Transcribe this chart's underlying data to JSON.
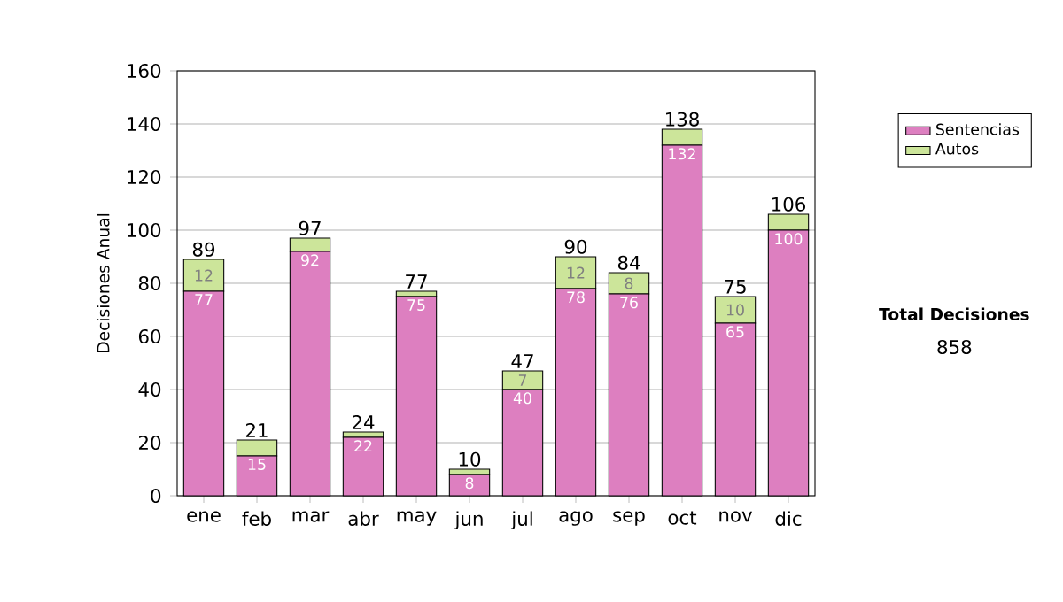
{
  "chart_data": {
    "type": "bar",
    "stacked": true,
    "ylabel": "Decisiones Anual",
    "categories": [
      "ene",
      "feb",
      "mar",
      "abr",
      "may",
      "jun",
      "jul",
      "ago",
      "sep",
      "oct",
      "nov",
      "dic"
    ],
    "series": [
      {
        "name": "Sentencias",
        "color": "#dd7fc0",
        "values": [
          77,
          15,
          92,
          22,
          75,
          8,
          40,
          78,
          76,
          132,
          65,
          100
        ],
        "value_labels": [
          "77",
          "15",
          "92",
          "22",
          "75",
          "8",
          "40",
          "78",
          "76",
          "132",
          "65",
          "100"
        ]
      },
      {
        "name": "Autos",
        "color": "#cce59a",
        "values": [
          12,
          6,
          5,
          2,
          2,
          2,
          7,
          12,
          8,
          6,
          10,
          6
        ],
        "value_labels": [
          "12",
          null,
          null,
          null,
          null,
          null,
          "7",
          "12",
          "8",
          null,
          "10",
          null
        ]
      }
    ],
    "totals": [
      "89",
      "21",
      "97",
      "24",
      "77",
      "10",
      "47",
      "90",
      "84",
      "138",
      "75",
      "106"
    ],
    "ylim": [
      0,
      160
    ],
    "yticks": [
      0,
      20,
      40,
      60,
      80,
      100,
      120,
      140,
      160
    ],
    "grid": "y",
    "legend": "right",
    "annotations": [
      "Total Decisiones",
      "858"
    ]
  }
}
